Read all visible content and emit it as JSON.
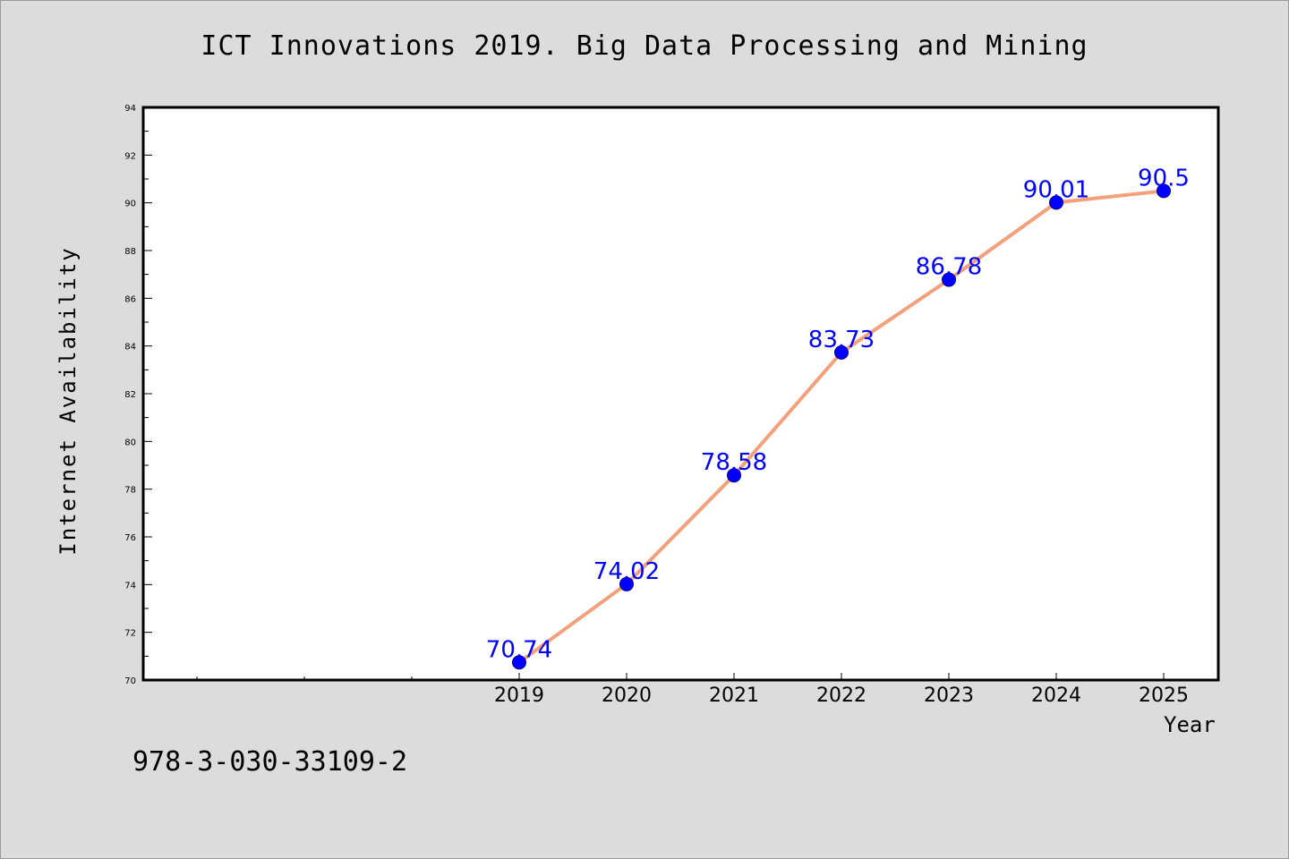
{
  "title": "ICT Innovations 2019. Big Data Processing and Mining",
  "footer_text": "978-3-030-33109-2",
  "colors": {
    "background": "#dcdcdc",
    "plot_background": "#ffffff",
    "line": "#f4a07a",
    "marker": "#0000ff",
    "data_label": "#0000ff"
  },
  "chart_data": {
    "type": "line",
    "title": "ICT Innovations 2019. Big Data Processing and Mining",
    "xlabel": "Year",
    "ylabel": "Internet Availability",
    "x": [
      "2019",
      "2020",
      "2021",
      "2022",
      "2023",
      "2024",
      "2025"
    ],
    "series": [
      {
        "values": [
          70.74,
          74.02,
          78.58,
          83.73,
          86.78,
          90.01,
          90.5
        ]
      }
    ],
    "data_labels": [
      "70.74",
      "74.02",
      "78.58",
      "83.73",
      "86.78",
      "90.01",
      "90.5"
    ],
    "ylim": [
      70,
      94
    ],
    "yticks": [
      70,
      72,
      74,
      76,
      78,
      80,
      82,
      84,
      86,
      88,
      90,
      92,
      94
    ],
    "grid": false,
    "legend": "none"
  }
}
